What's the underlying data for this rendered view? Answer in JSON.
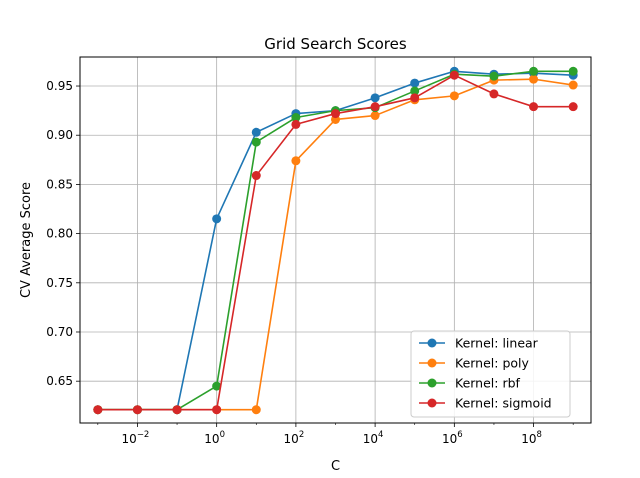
{
  "chart_data": {
    "type": "line",
    "title": "Grid Search Scores",
    "xlabel": "C",
    "ylabel": "CV Average Score",
    "xscale": "log",
    "xlim_exponent": [
      -3.45,
      9.45
    ],
    "ylim": [
      0.6075,
      0.9795
    ],
    "x_exponents": [
      -3,
      -2,
      -1,
      0,
      1,
      2,
      3,
      4,
      5,
      6,
      7,
      8,
      9
    ],
    "x_tick_exponents": [
      -2,
      0,
      2,
      4,
      6,
      8
    ],
    "x_tick_labels": [
      "10",
      "10",
      "10",
      "10",
      "10",
      "10"
    ],
    "x_tick_superscripts": [
      "−2",
      "0",
      "2",
      "4",
      "6",
      "8"
    ],
    "y_ticks": [
      0.65,
      0.7,
      0.75,
      0.8,
      0.85,
      0.9,
      0.95
    ],
    "y_tick_labels": [
      "0.65",
      "0.70",
      "0.75",
      "0.80",
      "0.85",
      "0.90",
      "0.95"
    ],
    "grid": true,
    "legend_position": "lower-right",
    "series": [
      {
        "name": "Kernel: linear",
        "color": "#1f77b4",
        "values": [
          0.621,
          0.621,
          0.621,
          0.815,
          0.903,
          0.922,
          0.925,
          0.938,
          0.953,
          0.965,
          0.962,
          0.963,
          0.961
        ]
      },
      {
        "name": "Kernel: poly",
        "color": "#ff7f0e",
        "values": [
          0.621,
          0.621,
          0.621,
          0.621,
          0.621,
          0.874,
          0.916,
          0.92,
          0.936,
          0.94,
          0.956,
          0.957,
          0.951
        ]
      },
      {
        "name": "Kernel: rbf",
        "color": "#2ca02c",
        "values": [
          0.621,
          0.621,
          0.621,
          0.645,
          0.893,
          0.918,
          0.925,
          0.928,
          0.945,
          0.962,
          0.96,
          0.965,
          0.965
        ]
      },
      {
        "name": "Kernel: sigmoid",
        "color": "#d62728",
        "values": [
          0.621,
          0.621,
          0.621,
          0.621,
          0.859,
          0.911,
          0.922,
          0.929,
          0.938,
          0.961,
          0.942,
          0.929,
          0.929
        ]
      }
    ]
  }
}
